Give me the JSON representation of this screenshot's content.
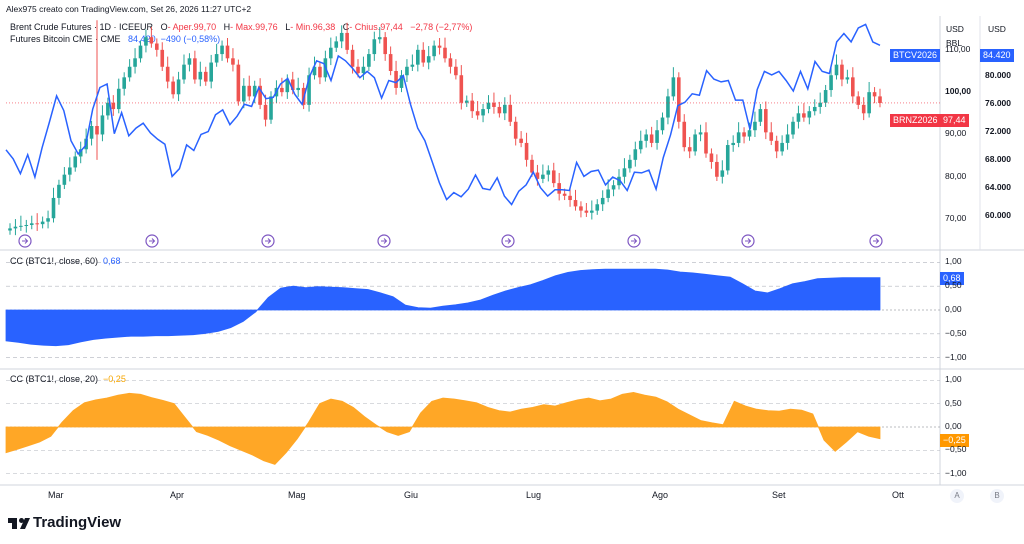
{
  "credit": "Alex975 creato con TradingView.com, Set 26, 2026 11:27 UTC+2",
  "main": {
    "symbol": "Brent Crude Futures · 1D · ICEEUR",
    "o_label": "O",
    "o_val": "- Aper.99,70",
    "h_label": "H",
    "h_val": "- Max.99,76",
    "l_label": "L",
    "l_val": "- Min.96,38",
    "c_label": "C",
    "c_val": "- Chius.97,44",
    "chg": "−2,78 (−2,77%)",
    "overlay_name": "Futures Bitcoin CME · CME",
    "overlay_val": "84,420",
    "overlay_chg": "−490 (−0,58%)",
    "currency_left": "USD",
    "currency_left_unit": "BBL",
    "currency_right": "USD",
    "left_ticks": [
      "110,00",
      "100,00",
      "90,00",
      "80,00",
      "70,00"
    ],
    "right_ticks": [
      "80.000",
      "76.000",
      "72.000",
      "68.000",
      "64.000",
      "60.000"
    ],
    "btc_badge_name": "BTCV2026",
    "btc_badge_val": "84.420",
    "brent_badge_name": "BRNZ2026",
    "brent_badge_val": "97,44"
  },
  "pane1": {
    "title": "CC (BTC1!, close, 60)",
    "value": "0,68",
    "badge": "0,68",
    "ticks": [
      "1,00",
      "0,50",
      "0,00",
      "−0,50",
      "−1,00"
    ]
  },
  "pane2": {
    "title": "CC (BTC1!, close, 20)",
    "value": "−0,25",
    "badge": "−0,25",
    "ticks": [
      "1,00",
      "0,50",
      "0,00",
      "−0,50",
      "−1,00"
    ]
  },
  "months": [
    "Mar",
    "Apr",
    "Mag",
    "Giu",
    "Lug",
    "Ago",
    "Set",
    "Ott"
  ],
  "axis_buttons": [
    "A",
    "B"
  ],
  "logo_text": "TradingView",
  "colors": {
    "up": "#26a69a",
    "down": "#ef5350",
    "blue": "#2962ff",
    "orange": "#ffa726",
    "grid": "#e0e3eb"
  },
  "chart_data": [
    {
      "type": "line",
      "title": "Brent Crude Futures · 1D · ICEEUR",
      "series": [
        {
          "name": "Brent Crude Futures (close)",
          "values": [
            67.8,
            68.2,
            68.4,
            68.6,
            69.0,
            68.8,
            69.4,
            70.2,
            75.0,
            78.1,
            80.5,
            82.2,
            84.8,
            86.5,
            89.0,
            92.0,
            90.0,
            94.5,
            97.5,
            96.0,
            100.8,
            103.5,
            106.0,
            108.0,
            111.0,
            113.0,
            111.5,
            110.0,
            106.0,
            102.5,
            99.5,
            103.0,
            106.5,
            108.0,
            103.0,
            104.8,
            102.5,
            107.0,
            109.0,
            111.0,
            108.0,
            106.5,
            97.8,
            101.5,
            99.0,
            101.5,
            97.0,
            93.5,
            99.0,
            101.0,
            100.0,
            103.0,
            100.5,
            101.0,
            97.0,
            104.0,
            106.0,
            103.5,
            108.0,
            110.5,
            112.0,
            114.0,
            110.0,
            106.0,
            104.5,
            106.0,
            109.0,
            112.5,
            113.0,
            109.0,
            105.0,
            101.0,
            104.0,
            106.0,
            106.5,
            110.0,
            107.0,
            108.5,
            111.0,
            110.5,
            108.0,
            106.0,
            104.0,
            97.5,
            98.0,
            95.5,
            94.5,
            96.0,
            97.5,
            96.5,
            95.0,
            97.0,
            93.0,
            89.0,
            88.0,
            84.0,
            81.0,
            79.5,
            80.5,
            81.5,
            78.5,
            76.0,
            75.5,
            74.5,
            73.0,
            72.0,
            71.5,
            72.0,
            73.5,
            75.0,
            77.0,
            78.0,
            80.0,
            82.0,
            84.0,
            86.5,
            88.5,
            90.0,
            88.0,
            91.0,
            94.0,
            99.0,
            103.5,
            93.0,
            87.0,
            86.0,
            90.0,
            90.5,
            85.5,
            83.5,
            80.0,
            81.5,
            87.5,
            88.0,
            90.5,
            89.5,
            91.0,
            93.0,
            96.0,
            90.5,
            88.5,
            86.0,
            88.0,
            90.0,
            93.0,
            95.0,
            94.0,
            95.5,
            96.5,
            97.5,
            100.5,
            104.0,
            106.5,
            103.0,
            103.5,
            99.0,
            97.0,
            95.0,
            100.0,
            99.0,
            97.44
          ]
        },
        {
          "name": "Futures Bitcoin CME (close)",
          "values": [
            69500,
            68200,
            66100,
            68800,
            65600,
            69800,
            73400,
            77200,
            75100,
            70800,
            68900,
            70100,
            75300,
            78400,
            78900,
            71800,
            74800,
            71500,
            72600,
            73300,
            71900,
            71000,
            70300,
            65700,
            66800,
            70200,
            69400,
            71700,
            72100,
            74500,
            75200,
            73100,
            74300,
            76000,
            75700,
            78400,
            76800,
            77000,
            78900,
            79700,
            77400,
            76000,
            79900,
            82200,
            81800,
            79400,
            82900,
            82200,
            81100,
            79800,
            80700,
            79800,
            76900,
            79400,
            79100,
            80100,
            76000,
            72600,
            70800,
            67800,
            64800,
            62400,
            63400,
            62800,
            63900,
            65900,
            64000,
            63800,
            65500,
            62900,
            61700,
            63600,
            64500,
            66300,
            64100,
            62900,
            63800,
            63800,
            63700,
            67700,
            65700,
            66400,
            66600,
            64500,
            65600,
            65100,
            63700,
            66300,
            66200,
            66600,
            63900,
            68400,
            71600,
            75800,
            76300,
            77500,
            77300,
            80800,
            79600,
            79200,
            79400,
            76600,
            76600,
            72400,
            78100,
            80700,
            80200,
            80700,
            79400,
            77900,
            80700,
            78200,
            82100,
            80700,
            80400,
            84900,
            86100,
            84900,
            86900,
            87400,
            84900,
            84420
          ]
        }
      ],
      "y_left_range": [
        66,
        118
      ],
      "y_right_range": [
        57200,
        88600
      ],
      "x_range_labels": [
        "Mar",
        "Apr",
        "Mag",
        "Giu",
        "Lug",
        "Ago",
        "Set",
        "Ott"
      ]
    },
    {
      "type": "area",
      "title": "CC (BTC1!, close, 60)",
      "series": [
        {
          "name": "CC (BTC1!, close, 60)",
          "values": [
            -0.65,
            -0.68,
            -0.72,
            -0.74,
            -0.75,
            -0.73,
            -0.67,
            -0.62,
            -0.59,
            -0.57,
            -0.55,
            -0.55,
            -0.54,
            -0.54,
            -0.53,
            -0.52,
            -0.49,
            -0.45,
            -0.37,
            -0.24,
            -0.04,
            0.26,
            0.46,
            0.5,
            0.47,
            0.49,
            0.48,
            0.47,
            0.45,
            0.43,
            0.36,
            0.28,
            0.1,
            0.05,
            0.04,
            0.08,
            0.11,
            0.15,
            0.21,
            0.31,
            0.4,
            0.47,
            0.53,
            0.62,
            0.72,
            0.79,
            0.83,
            0.85,
            0.86,
            0.86,
            0.86,
            0.86,
            0.86,
            0.84,
            0.8,
            0.78,
            0.75,
            0.72,
            0.69,
            0.55,
            0.4,
            0.36,
            0.45,
            0.55,
            0.6,
            0.66,
            0.67,
            0.68,
            0.68,
            0.68,
            0.68
          ]
        }
      ],
      "ylim": [
        -1,
        1
      ]
    },
    {
      "type": "area",
      "title": "CC (BTC1!, close, 20)",
      "series": [
        {
          "name": "CC (BTC1!, close, 20)",
          "values": [
            -0.55,
            -0.48,
            -0.4,
            -0.32,
            -0.2,
            0.1,
            0.35,
            0.52,
            0.58,
            0.62,
            0.68,
            0.72,
            0.7,
            0.63,
            0.57,
            0.5,
            0.2,
            -0.1,
            -0.18,
            -0.28,
            -0.4,
            -0.5,
            -0.6,
            -0.72,
            -0.8,
            -0.55,
            -0.25,
            0.1,
            0.5,
            0.6,
            0.55,
            0.42,
            0.22,
            0.05,
            -0.1,
            -0.18,
            -0.1,
            0.3,
            0.55,
            0.62,
            0.6,
            0.56,
            0.52,
            0.42,
            0.35,
            0.32,
            0.38,
            0.42,
            0.48,
            0.45,
            0.52,
            0.58,
            0.62,
            0.56,
            0.6,
            0.7,
            0.74,
            0.68,
            0.64,
            0.54,
            0.38,
            0.26,
            0.14,
            0.09,
            0.05,
            0.55,
            0.45,
            0.38,
            0.35,
            0.34,
            0.38,
            0.36,
            0.28,
            -0.28,
            -0.52,
            -0.32,
            -0.1,
            -0.2,
            -0.25
          ]
        }
      ],
      "ylim": [
        -1,
        1
      ]
    }
  ]
}
